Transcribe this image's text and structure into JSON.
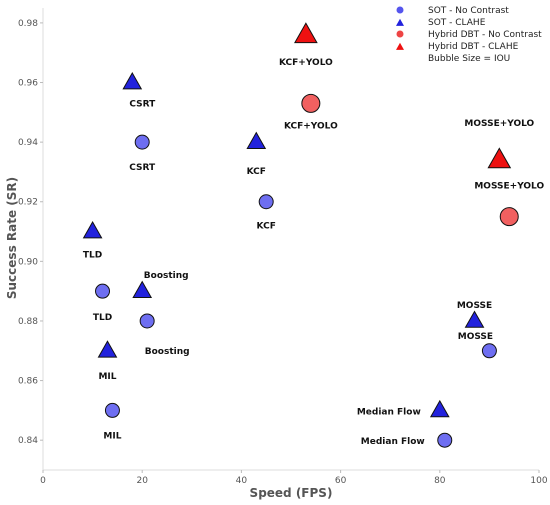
{
  "chart_data": {
    "type": "scatter",
    "title": "",
    "xlabel": "Speed (FPS)",
    "ylabel": "Success Rate (SR)",
    "xlim": [
      0,
      100
    ],
    "ylim": [
      0.83,
      0.985
    ],
    "xticks": [
      "0",
      "20",
      "40",
      "60",
      "80",
      "100"
    ],
    "yticks": [
      "0.84",
      "0.86",
      "0.88",
      "0.90",
      "0.92",
      "0.94",
      "0.96",
      "0.98"
    ],
    "grid": false,
    "legend_position": "top-right",
    "size_note": "Bubble Size = IOU",
    "series": [
      {
        "name": "SOT - No Contrast",
        "marker": "circle",
        "color": "#5555ee",
        "points": [
          {
            "label": "CSRT",
            "x": 20,
            "y": 0.94
          },
          {
            "label": "KCF",
            "x": 45,
            "y": 0.92
          },
          {
            "label": "TLD",
            "x": 12,
            "y": 0.89
          },
          {
            "label": "Boosting",
            "x": 21,
            "y": 0.88
          },
          {
            "label": "MIL",
            "x": 14,
            "y": 0.85
          },
          {
            "label": "MOSSE",
            "x": 90,
            "y": 0.87
          },
          {
            "label": "Median Flow",
            "x": 81,
            "y": 0.84
          }
        ]
      },
      {
        "name": "SOT - CLAHE",
        "marker": "triangle",
        "color": "#2222dd",
        "points": [
          {
            "label": "CSRT",
            "x": 18,
            "y": 0.96
          },
          {
            "label": "KCF",
            "x": 43,
            "y": 0.94
          },
          {
            "label": "TLD",
            "x": 10,
            "y": 0.91
          },
          {
            "label": "Boosting",
            "x": 20,
            "y": 0.89
          },
          {
            "label": "MIL",
            "x": 13,
            "y": 0.87
          },
          {
            "label": "MOSSE",
            "x": 87,
            "y": 0.88
          },
          {
            "label": "Median Flow",
            "x": 80,
            "y": 0.85
          }
        ]
      },
      {
        "name": "Hybrid DBT - No Contrast",
        "marker": "circle",
        "color": "#ee4444",
        "points": [
          {
            "label": "KCF+YOLO",
            "x": 54,
            "y": 0.953
          },
          {
            "label": "MOSSE+YOLO",
            "x": 94,
            "y": 0.915
          }
        ]
      },
      {
        "name": "Hybrid DBT - CLAHE",
        "marker": "triangle",
        "color": "#ee1111",
        "points": [
          {
            "label": "KCF+YOLO",
            "x": 53,
            "y": 0.976
          },
          {
            "label": "MOSSE+YOLO",
            "x": 92,
            "y": 0.934
          }
        ]
      }
    ]
  }
}
